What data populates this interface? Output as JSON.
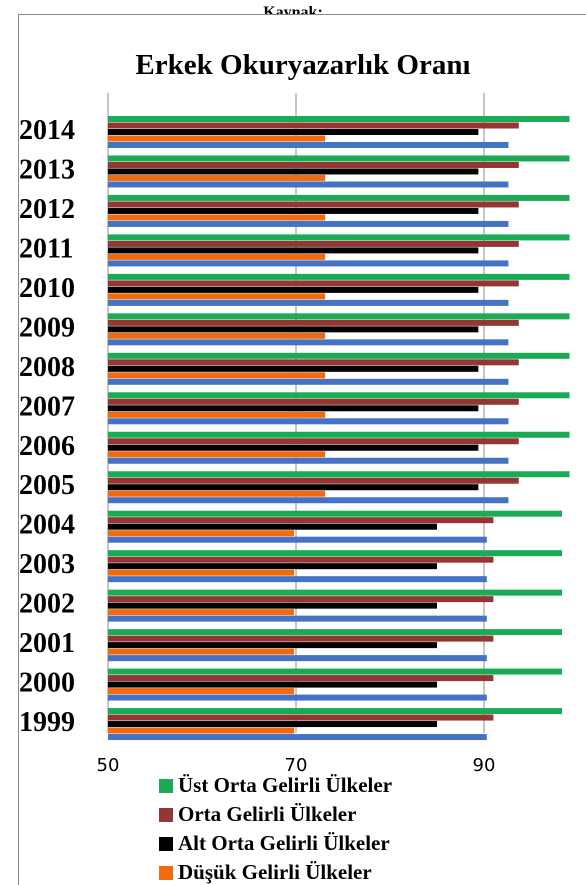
{
  "source_caption": "Kaynak:",
  "chart_data": {
    "type": "bar",
    "orientation": "horizontal",
    "title": "Erkek Okuryazarlık Oranı",
    "xlabel": "",
    "ylabel": "",
    "xlim": [
      50,
      100
    ],
    "x_ticks": [
      50,
      70,
      90
    ],
    "grid": true,
    "legend_position": "bottom",
    "categories": [
      "2014",
      "2013",
      "2012",
      "2011",
      "2010",
      "2009",
      "2008",
      "2007",
      "2006",
      "2005",
      "2004",
      "2003",
      "2002",
      "2001",
      "2000",
      "1999"
    ],
    "series": [
      {
        "name": "Üst Orta Gelirli Ülkeler",
        "color": "#1bab55",
        "values": [
          99.1,
          99.1,
          99.1,
          99.1,
          99.1,
          99.1,
          99.1,
          99.1,
          99.1,
          99.1,
          98.3,
          98.3,
          98.3,
          98.3,
          98.3,
          98.3
        ]
      },
      {
        "name": "Orta Gelirli Ülkeler",
        "color": "#943634",
        "values": [
          93.7,
          93.7,
          93.7,
          93.7,
          93.7,
          93.7,
          93.7,
          93.7,
          93.7,
          93.7,
          91.0,
          91.0,
          91.0,
          91.0,
          91.0,
          91.0
        ]
      },
      {
        "name": "Alt Orta Gelirli Ülkeler",
        "color": "#000000",
        "values": [
          89.4,
          89.4,
          89.4,
          89.4,
          89.4,
          89.4,
          89.4,
          89.4,
          89.4,
          89.4,
          85.0,
          85.0,
          85.0,
          85.0,
          85.0,
          85.0
        ]
      },
      {
        "name": "Düşük Gelirli Ülkeler",
        "color": "#f26a0f",
        "values": [
          73.1,
          73.1,
          73.1,
          73.1,
          73.1,
          73.1,
          73.1,
          73.1,
          73.1,
          73.1,
          69.8,
          69.8,
          69.8,
          69.8,
          69.8,
          69.8
        ]
      },
      {
        "color": "#4472c4",
        "values": [
          92.6,
          92.6,
          92.6,
          92.6,
          92.6,
          92.6,
          92.6,
          92.6,
          92.6,
          92.6,
          90.3,
          90.3,
          90.3,
          90.3,
          90.3,
          90.3
        ]
      }
    ]
  }
}
